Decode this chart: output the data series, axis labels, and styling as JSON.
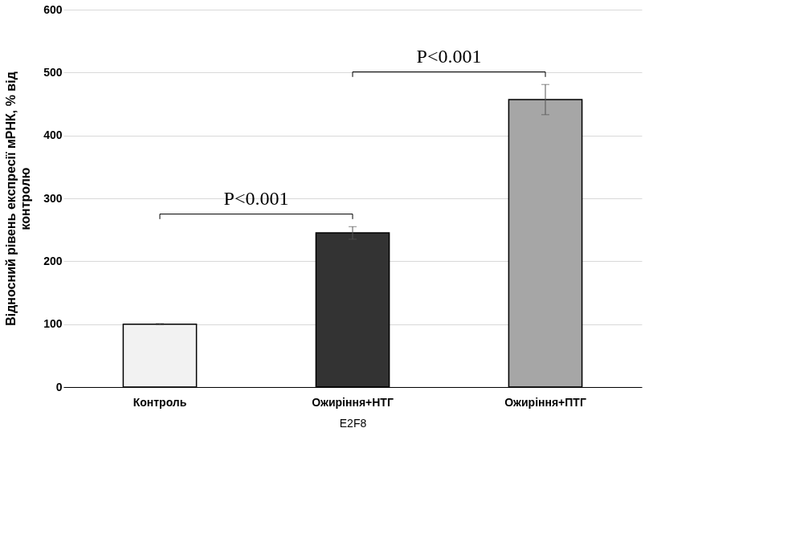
{
  "chart_data": {
    "type": "bar",
    "categories": [
      "Контроль",
      "Ожиріння+НТГ",
      "Ожиріння+ПТГ"
    ],
    "values": [
      100,
      245,
      457
    ],
    "errors": [
      1,
      10,
      24
    ],
    "colors": [
      "#f2f2f2",
      "#333333",
      "#a6a6a6"
    ],
    "xlabel": "E2F8",
    "ylabel": "Відносний  рівень експресії мРНК, % від контролю",
    "ylim": [
      0,
      600
    ],
    "yticks": [
      0,
      100,
      200,
      300,
      400,
      500,
      600
    ],
    "grid": "y",
    "annotations": [
      "P<0.001",
      "P<0.001"
    ]
  }
}
